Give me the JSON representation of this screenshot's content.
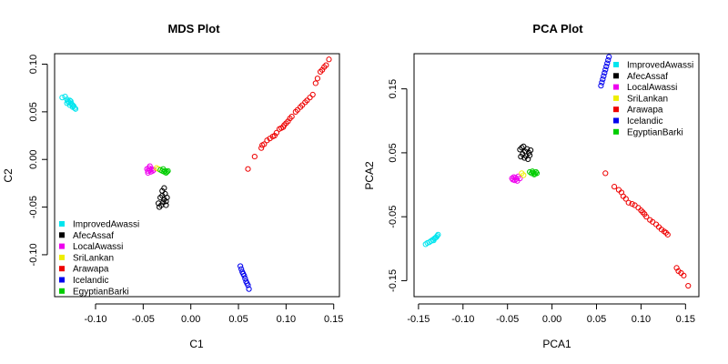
{
  "chart_data": [
    {
      "type": "scatter",
      "title": "MDS Plot",
      "xlabel": "C1",
      "ylabel": "C2",
      "xlim": [
        -0.143,
        0.156
      ],
      "ylim": [
        -0.144,
        0.111
      ],
      "xticks": [
        -0.1,
        -0.05,
        0.0,
        0.05,
        0.1,
        0.15
      ],
      "xtick_labels": [
        "-0.10",
        "-0.05",
        "0.00",
        "0.05",
        "0.10",
        "0.15"
      ],
      "yticks": [
        -0.1,
        -0.05,
        0.0,
        0.05,
        0.1
      ],
      "ytick_labels": [
        "-0.10",
        "-0.05",
        "0.00",
        "0.05",
        "0.10"
      ],
      "legend_position": "bottom-left",
      "marker": "open-circle",
      "series": [
        {
          "name": "ImprovedAwassi",
          "color": "#00e5ee",
          "points": [
            [
              -0.135,
              0.065
            ],
            [
              -0.132,
              0.066
            ],
            [
              -0.13,
              0.063
            ],
            [
              -0.129,
              0.061
            ],
            [
              -0.128,
              0.06
            ],
            [
              -0.127,
              0.062
            ],
            [
              -0.126,
              0.059
            ],
            [
              -0.125,
              0.058
            ],
            [
              -0.124,
              0.057
            ],
            [
              -0.124,
              0.055
            ],
            [
              -0.123,
              0.056
            ],
            [
              -0.122,
              0.054
            ],
            [
              -0.121,
              0.053
            ],
            [
              -0.127,
              0.057
            ],
            [
              -0.13,
              0.059
            ],
            [
              -0.126,
              0.061
            ]
          ]
        },
        {
          "name": "AfecAssaf",
          "color": "#000000",
          "points": [
            [
              -0.032,
              -0.04
            ],
            [
              -0.03,
              -0.038
            ],
            [
              -0.028,
              -0.042
            ],
            [
              -0.029,
              -0.045
            ],
            [
              -0.031,
              -0.048
            ],
            [
              -0.033,
              -0.05
            ],
            [
              -0.027,
              -0.036
            ],
            [
              -0.026,
              -0.044
            ],
            [
              -0.025,
              -0.04
            ],
            [
              -0.03,
              -0.033
            ],
            [
              -0.028,
              -0.03
            ],
            [
              -0.034,
              -0.046
            ],
            [
              -0.026,
              -0.048
            ]
          ]
        },
        {
          "name": "LocalAwassi",
          "color": "#ee00ee",
          "points": [
            [
              -0.046,
              -0.01
            ],
            [
              -0.045,
              -0.012
            ],
            [
              -0.044,
              -0.009
            ],
            [
              -0.043,
              -0.011
            ],
            [
              -0.042,
              -0.013
            ],
            [
              -0.041,
              -0.01
            ],
            [
              -0.04,
              -0.012
            ],
            [
              -0.043,
              -0.007
            ],
            [
              -0.045,
              -0.014
            ],
            [
              -0.039,
              -0.011
            ]
          ]
        },
        {
          "name": "SriLankan",
          "color": "#eeee00",
          "points": [
            [
              -0.036,
              -0.009
            ],
            [
              -0.034,
              -0.01
            ]
          ]
        },
        {
          "name": "Arawapa",
          "color": "#ee0000",
          "points": [
            [
              0.06,
              -0.01
            ],
            [
              0.067,
              0.003
            ],
            [
              0.074,
              0.012
            ],
            [
              0.075,
              0.015
            ],
            [
              0.077,
              0.016
            ],
            [
              0.08,
              0.02
            ],
            [
              0.083,
              0.022
            ],
            [
              0.086,
              0.024
            ],
            [
              0.088,
              0.025
            ],
            [
              0.09,
              0.028
            ],
            [
              0.093,
              0.032
            ],
            [
              0.095,
              0.033
            ],
            [
              0.097,
              0.034
            ],
            [
              0.098,
              0.036
            ],
            [
              0.1,
              0.038
            ],
            [
              0.102,
              0.04
            ],
            [
              0.104,
              0.043
            ],
            [
              0.106,
              0.045
            ],
            [
              0.11,
              0.05
            ],
            [
              0.112,
              0.052
            ],
            [
              0.115,
              0.055
            ],
            [
              0.117,
              0.057
            ],
            [
              0.12,
              0.06
            ],
            [
              0.122,
              0.062
            ],
            [
              0.125,
              0.065
            ],
            [
              0.128,
              0.068
            ],
            [
              0.131,
              0.08
            ],
            [
              0.133,
              0.085
            ],
            [
              0.136,
              0.092
            ],
            [
              0.138,
              0.094
            ],
            [
              0.14,
              0.097
            ],
            [
              0.142,
              0.099
            ],
            [
              0.145,
              0.105
            ]
          ]
        },
        {
          "name": "Icelandic",
          "color": "#0000ee",
          "points": [
            [
              0.052,
              -0.112
            ],
            [
              0.053,
              -0.115
            ],
            [
              0.054,
              -0.118
            ],
            [
              0.055,
              -0.12
            ],
            [
              0.056,
              -0.122
            ],
            [
              0.057,
              -0.125
            ],
            [
              0.058,
              -0.128
            ],
            [
              0.059,
              -0.13
            ],
            [
              0.06,
              -0.132
            ],
            [
              0.061,
              -0.136
            ]
          ]
        },
        {
          "name": "EgyptianBarki",
          "color": "#00cd00",
          "points": [
            [
              -0.032,
              -0.011
            ],
            [
              -0.03,
              -0.012
            ],
            [
              -0.028,
              -0.013
            ],
            [
              -0.027,
              -0.012
            ],
            [
              -0.026,
              -0.014
            ],
            [
              -0.025,
              -0.013
            ],
            [
              -0.024,
              -0.012
            ],
            [
              -0.029,
              -0.01
            ]
          ]
        }
      ]
    },
    {
      "type": "scatter",
      "title": "PCA Plot",
      "xlabel": "PCA1",
      "ylabel": "PCA2",
      "xlim": [
        -0.155,
        0.165
      ],
      "ylim": [
        -0.175,
        0.205
      ],
      "xticks": [
        -0.15,
        -0.1,
        -0.05,
        0.0,
        0.05,
        0.1,
        0.15
      ],
      "xtick_labels": [
        "-0.15",
        "-0.10",
        "-0.05",
        "0.00",
        "0.05",
        "0.10",
        "0.15"
      ],
      "yticks": [
        -0.15,
        -0.05,
        0.05,
        0.15
      ],
      "ytick_labels": [
        "-0.15",
        "-0.05",
        "0.05",
        "0.15"
      ],
      "legend_position": "top-right",
      "marker": "open-circle",
      "series": [
        {
          "name": "ImprovedAwassi",
          "color": "#00e5ee",
          "points": [
            [
              -0.142,
              -0.093
            ],
            [
              -0.14,
              -0.091
            ],
            [
              -0.138,
              -0.09
            ],
            [
              -0.136,
              -0.088
            ],
            [
              -0.134,
              -0.086
            ],
            [
              -0.133,
              -0.087
            ],
            [
              -0.132,
              -0.084
            ],
            [
              -0.131,
              -0.083
            ],
            [
              -0.13,
              -0.082
            ],
            [
              -0.129,
              -0.08
            ],
            [
              -0.128,
              -0.078
            ]
          ]
        },
        {
          "name": "AfecAssaf",
          "color": "#000000",
          "points": [
            [
              -0.036,
              0.055
            ],
            [
              -0.034,
              0.058
            ],
            [
              -0.032,
              0.06
            ],
            [
              -0.03,
              0.052
            ],
            [
              -0.028,
              0.056
            ],
            [
              -0.026,
              0.05
            ],
            [
              -0.024,
              0.054
            ],
            [
              -0.033,
              0.048
            ],
            [
              -0.029,
              0.045
            ],
            [
              -0.025,
              0.046
            ],
            [
              -0.031,
              0.042
            ],
            [
              -0.027,
              0.04
            ],
            [
              -0.035,
              0.044
            ]
          ]
        },
        {
          "name": "LocalAwassi",
          "color": "#ee00ee",
          "points": [
            [
              -0.045,
              0.01
            ],
            [
              -0.043,
              0.012
            ],
            [
              -0.041,
              0.011
            ],
            [
              -0.04,
              0.009
            ],
            [
              -0.038,
              0.013
            ],
            [
              -0.036,
              0.01
            ],
            [
              -0.042,
              0.007
            ],
            [
              -0.039,
              0.006
            ],
            [
              -0.044,
              0.008
            ]
          ]
        },
        {
          "name": "SriLankan",
          "color": "#eeee00",
          "points": [
            [
              -0.034,
              0.018
            ],
            [
              -0.032,
              0.015
            ]
          ]
        },
        {
          "name": "Arawapa",
          "color": "#ee0000",
          "points": [
            [
              0.06,
              0.018
            ],
            [
              0.07,
              -0.003
            ],
            [
              0.075,
              -0.008
            ],
            [
              0.078,
              -0.012
            ],
            [
              0.08,
              -0.018
            ],
            [
              0.083,
              -0.022
            ],
            [
              0.086,
              -0.028
            ],
            [
              0.09,
              -0.03
            ],
            [
              0.093,
              -0.032
            ],
            [
              0.097,
              -0.036
            ],
            [
              0.1,
              -0.04
            ],
            [
              0.102,
              -0.043
            ],
            [
              0.104,
              -0.046
            ],
            [
              0.106,
              -0.05
            ],
            [
              0.11,
              -0.055
            ],
            [
              0.113,
              -0.058
            ],
            [
              0.117,
              -0.062
            ],
            [
              0.12,
              -0.066
            ],
            [
              0.123,
              -0.07
            ],
            [
              0.126,
              -0.073
            ],
            [
              0.128,
              -0.075
            ],
            [
              0.13,
              -0.078
            ],
            [
              0.14,
              -0.13
            ],
            [
              0.142,
              -0.135
            ],
            [
              0.145,
              -0.138
            ],
            [
              0.148,
              -0.142
            ],
            [
              0.153,
              -0.158
            ]
          ]
        },
        {
          "name": "Icelandic",
          "color": "#0000ee",
          "points": [
            [
              0.055,
              0.155
            ],
            [
              0.056,
              0.16
            ],
            [
              0.057,
              0.165
            ],
            [
              0.058,
              0.17
            ],
            [
              0.059,
              0.175
            ],
            [
              0.06,
              0.18
            ],
            [
              0.061,
              0.185
            ],
            [
              0.062,
              0.19
            ],
            [
              0.063,
              0.195
            ],
            [
              0.064,
              0.2
            ]
          ]
        },
        {
          "name": "EgyptianBarki",
          "color": "#00cd00",
          "points": [
            [
              -0.025,
              0.02
            ],
            [
              -0.023,
              0.018
            ],
            [
              -0.021,
              0.019
            ],
            [
              -0.019,
              0.017
            ],
            [
              -0.018,
              0.02
            ],
            [
              -0.02,
              0.016
            ],
            [
              -0.022,
              0.021
            ],
            [
              -0.017,
              0.018
            ]
          ]
        }
      ]
    }
  ]
}
